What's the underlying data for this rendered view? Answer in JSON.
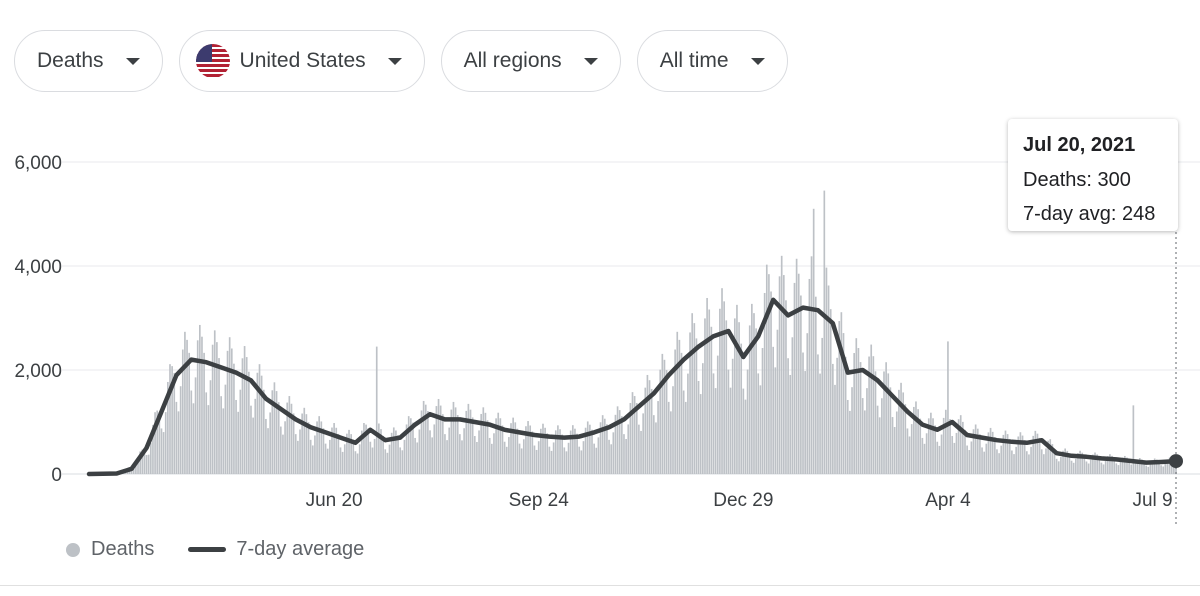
{
  "filters": {
    "metric": "Deaths",
    "country": "United States",
    "region": "All regions",
    "period": "All time"
  },
  "tooltip": {
    "date": "Jul 20, 2021",
    "deaths_line": "Deaths: 300",
    "avg_line": "7-day avg: 248"
  },
  "legend": {
    "bars_label": "Deaths",
    "line_label": "7-day average"
  },
  "colors": {
    "bars": "#bdc1c6",
    "line": "#3c4043",
    "grid": "#e8eaed",
    "axis_text": "#3c4043"
  },
  "chart_data": {
    "type": "bar",
    "title": "",
    "xlabel": "",
    "ylabel": "",
    "ylim": [
      0,
      6000
    ],
    "yticks": [
      0,
      2000,
      4000,
      6000
    ],
    "ytick_labels": [
      "0",
      "2,000",
      "4,000",
      "6,000"
    ],
    "x_range": [
      "2020-02-26",
      "2021-07-20"
    ],
    "xtick_dates": [
      "2020-06-20",
      "2020-09-24",
      "2020-12-29",
      "2021-04-04",
      "2021-07-09"
    ],
    "xtick_labels": [
      "Jun 20",
      "Sep 24",
      "Dec 29",
      "Apr 4",
      "Jul 9"
    ],
    "grid": true,
    "legend_position": "bottom-left",
    "series": [
      {
        "name": "Deaths",
        "kind": "bar",
        "values_note": "daily deaths from 2020-02-26 to 2021-07-20, one value per day",
        "values": []
      },
      {
        "name": "7-day average",
        "kind": "line",
        "points": [
          [
            "2020-02-26",
            0
          ],
          [
            "2020-03-10",
            10
          ],
          [
            "2020-03-17",
            100
          ],
          [
            "2020-03-24",
            500
          ],
          [
            "2020-03-31",
            1200
          ],
          [
            "2020-04-07",
            1900
          ],
          [
            "2020-04-14",
            2200
          ],
          [
            "2020-04-21",
            2150
          ],
          [
            "2020-04-28",
            2050
          ],
          [
            "2020-05-05",
            1950
          ],
          [
            "2020-05-12",
            1800
          ],
          [
            "2020-05-19",
            1450
          ],
          [
            "2020-05-26",
            1250
          ],
          [
            "2020-06-02",
            1050
          ],
          [
            "2020-06-09",
            900
          ],
          [
            "2020-06-16",
            800
          ],
          [
            "2020-06-23",
            700
          ],
          [
            "2020-06-30",
            600
          ],
          [
            "2020-07-07",
            850
          ],
          [
            "2020-07-14",
            650
          ],
          [
            "2020-07-21",
            700
          ],
          [
            "2020-07-28",
            950
          ],
          [
            "2020-08-04",
            1150
          ],
          [
            "2020-08-11",
            1050
          ],
          [
            "2020-08-18",
            1050
          ],
          [
            "2020-08-25",
            1000
          ],
          [
            "2020-09-01",
            950
          ],
          [
            "2020-09-08",
            850
          ],
          [
            "2020-09-15",
            800
          ],
          [
            "2020-09-22",
            750
          ],
          [
            "2020-09-29",
            720
          ],
          [
            "2020-10-06",
            700
          ],
          [
            "2020-10-13",
            720
          ],
          [
            "2020-10-20",
            800
          ],
          [
            "2020-10-27",
            900
          ],
          [
            "2020-11-03",
            1050
          ],
          [
            "2020-11-10",
            1300
          ],
          [
            "2020-11-17",
            1550
          ],
          [
            "2020-11-24",
            1900
          ],
          [
            "2020-12-01",
            2200
          ],
          [
            "2020-12-08",
            2450
          ],
          [
            "2020-12-15",
            2650
          ],
          [
            "2020-12-22",
            2750
          ],
          [
            "2020-12-29",
            2250
          ],
          [
            "2021-01-05",
            2650
          ],
          [
            "2021-01-12",
            3350
          ],
          [
            "2021-01-19",
            3050
          ],
          [
            "2021-01-26",
            3200
          ],
          [
            "2021-02-02",
            3150
          ],
          [
            "2021-02-09",
            2900
          ],
          [
            "2021-02-16",
            1950
          ],
          [
            "2021-02-23",
            2000
          ],
          [
            "2021-03-02",
            1800
          ],
          [
            "2021-03-09",
            1500
          ],
          [
            "2021-03-16",
            1200
          ],
          [
            "2021-03-23",
            950
          ],
          [
            "2021-03-30",
            850
          ],
          [
            "2021-04-06",
            1000
          ],
          [
            "2021-04-13",
            750
          ],
          [
            "2021-04-20",
            700
          ],
          [
            "2021-04-27",
            650
          ],
          [
            "2021-05-04",
            620
          ],
          [
            "2021-05-11",
            600
          ],
          [
            "2021-05-18",
            650
          ],
          [
            "2021-05-25",
            400
          ],
          [
            "2021-06-01",
            350
          ],
          [
            "2021-06-08",
            330
          ],
          [
            "2021-06-15",
            300
          ],
          [
            "2021-06-22",
            280
          ],
          [
            "2021-06-29",
            250
          ],
          [
            "2021-07-06",
            220
          ],
          [
            "2021-07-13",
            230
          ],
          [
            "2021-07-20",
            248
          ]
        ]
      }
    ],
    "highlight": {
      "date": "2021-07-20",
      "deaths": 300,
      "avg": 248
    }
  }
}
